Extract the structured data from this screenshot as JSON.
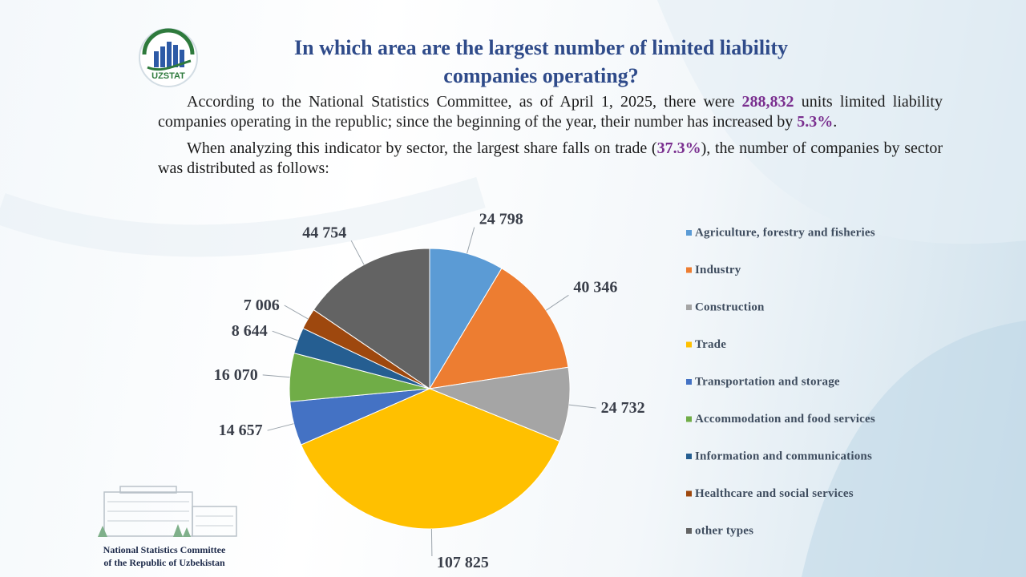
{
  "logo": {
    "text": "UZSTAT",
    "icon": "uzstat-logo-icon",
    "color": "#2e7a3c"
  },
  "title": {
    "line1": "In which area are the largest number of limited liability",
    "line2": "companies operating?"
  },
  "paragraph1": {
    "before": "According to the National Statistics Committee, as of April 1, 2025, there were ",
    "count": "288,832",
    "middle": " units limited liability companies operating in the republic; since the beginning of the year, their number has increased by ",
    "growth": "5.3%",
    "after": "."
  },
  "paragraph2": {
    "before": "When analyzing this indicator by sector, the largest share falls on trade (",
    "share": "37.3%",
    "after": "), the number of companies by sector was distributed as follows:"
  },
  "chart_data": {
    "type": "pie",
    "title": "",
    "legend_position": "right",
    "start_angle_deg": 0,
    "direction": "clockwise",
    "slices": [
      {
        "name": "Agriculture, forestry and fisheries",
        "value": 24798,
        "label": "24 798",
        "color": "#5b9bd5"
      },
      {
        "name": "Industry",
        "value": 40346,
        "label": "40 346",
        "color": "#ed7d31"
      },
      {
        "name": "Construction",
        "value": 24732,
        "label": "24 732",
        "color": "#a5a5a5"
      },
      {
        "name": "Trade",
        "value": 107825,
        "label": "107 825",
        "color": "#ffc000"
      },
      {
        "name": "Transportation and storage",
        "value": 14657,
        "label": "14 657",
        "color": "#4472c4"
      },
      {
        "name": "Accommodation and food services",
        "value": 16070,
        "label": "16 070",
        "color": "#70ad47"
      },
      {
        "name": "Information and communications",
        "value": 8644,
        "label": "8 644",
        "color": "#255e91"
      },
      {
        "name": "Healthcare and social services",
        "value": 7006,
        "label": "7 006",
        "color": "#9e480e"
      },
      {
        "name": "other types",
        "value": 44754,
        "label": "44 754",
        "color": "#636363"
      }
    ]
  },
  "footer": {
    "line1": "National Statistics Committee",
    "line2": "of the Republic of Uzbekistan",
    "icon": "building-icon"
  }
}
